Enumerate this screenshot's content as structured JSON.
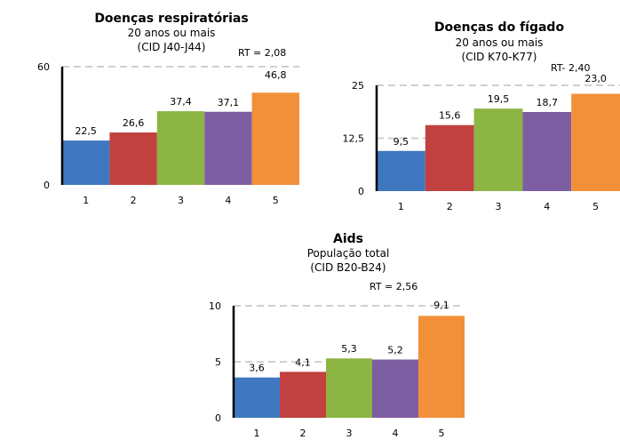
{
  "colors": [
    "#3f78c0",
    "#c0413f",
    "#8db543",
    "#7e5ea2",
    "#f2903a"
  ],
  "chart_data": [
    {
      "type": "bar",
      "title": "Doenças respiratórias",
      "subtitle1": "20 anos ou mais",
      "subtitle2": "(CID J40-J44)",
      "rt_label": "RT = 2,08",
      "categories": [
        "1",
        "2",
        "3",
        "4",
        "5"
      ],
      "values": [
        22.5,
        26.6,
        37.4,
        37.1,
        46.8
      ],
      "value_labels": [
        "22,5",
        "26,6",
        "37,4",
        "37,1",
        "46,8"
      ],
      "ylim": [
        0,
        60
      ],
      "yticks": [
        0,
        60
      ],
      "ytick_labels": [
        "0",
        "60"
      ],
      "gridlines": [
        60
      ],
      "grid": "dashed"
    },
    {
      "type": "bar",
      "title": "Doenças do fígado",
      "subtitle1": "20  anos ou mais",
      "subtitle2": "(CID K70-K77)",
      "rt_label": "RT- 2,40",
      "categories": [
        "1",
        "2",
        "3",
        "4",
        "5"
      ],
      "values": [
        9.5,
        15.6,
        19.5,
        18.7,
        23.0
      ],
      "value_labels": [
        "9,5",
        "15,6",
        "19,5",
        "18,7",
        "23,0"
      ],
      "ylim": [
        0,
        25
      ],
      "yticks": [
        0,
        12.5,
        25
      ],
      "ytick_labels": [
        "0",
        "12,5",
        "25"
      ],
      "gridlines": [
        12.5,
        25
      ],
      "grid": "dashed"
    },
    {
      "type": "bar",
      "title": "Aids",
      "subtitle1": "População total",
      "subtitle2": "(CID B20-B24)",
      "rt_label": "RT = 2,56",
      "categories": [
        "1",
        "2",
        "3",
        "4",
        "5"
      ],
      "values": [
        3.6,
        4.1,
        5.3,
        5.2,
        9.1
      ],
      "value_labels": [
        "3,6",
        "4,1",
        "5,3",
        "5,2",
        "9,1"
      ],
      "ylim": [
        0,
        10
      ],
      "yticks": [
        0,
        5,
        10
      ],
      "ytick_labels": [
        "0",
        "5",
        "10"
      ],
      "gridlines": [
        5,
        10
      ],
      "grid": "dashed"
    }
  ]
}
